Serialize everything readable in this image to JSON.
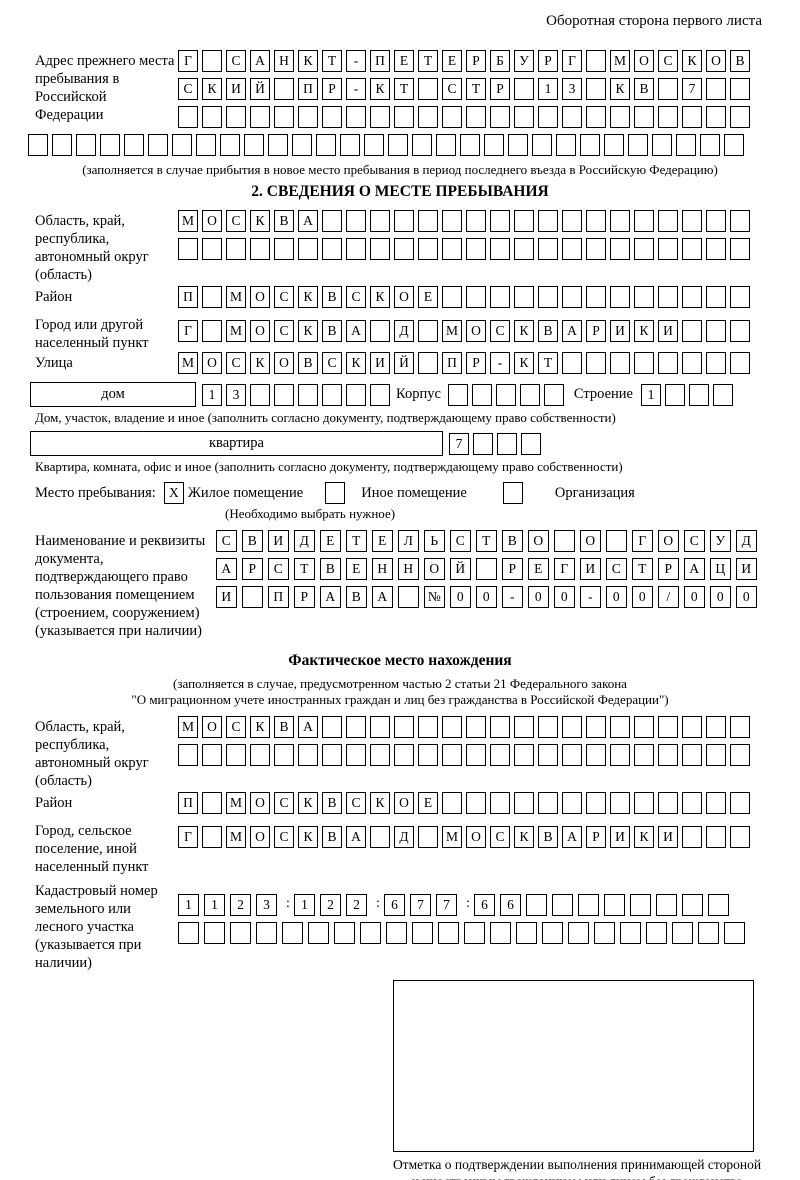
{
  "corner_note": "Оборотная сторона первого листа",
  "prev_address": {
    "label": "Адрес прежнего места пребывания в Российской Федерации",
    "row1": {
      "text": "Г САНКТ-ПЕТЕРБУРГ МОСКОВ",
      "len": 24
    },
    "row2": {
      "text": "СКИЙ ПР-КТ СТР 13 КВ 7",
      "len": 24
    },
    "row3": {
      "text": "",
      "len": 24
    },
    "row4": {
      "text": "",
      "len": 30
    },
    "note": "(заполняется в случае прибытия в новое место пребывания в период последнего въезда в Российскую Федерацию)"
  },
  "section2": {
    "title": "2. СВЕДЕНИЯ О МЕСТЕ ПРЕБЫВАНИЯ",
    "region": {
      "label": "Область, край, республика, автономный округ (область)",
      "row1": {
        "text": "МОСКВА",
        "len": 24
      },
      "row2": {
        "text": "",
        "len": 24
      }
    },
    "district": {
      "label": "Район",
      "row": {
        "text": "П МОСКВСКОЕ",
        "len": 24
      }
    },
    "city": {
      "label": "Город или другой населенный пункт",
      "row": {
        "text": "Г МОСКВА Д МОСКВАРИКИ",
        "len": 24
      }
    },
    "street": {
      "label": "Улица",
      "row": {
        "text": "МОСКОВСКИЙ ПР-КТ",
        "len": 24
      }
    },
    "house": {
      "field_label": "дом",
      "num": {
        "text": "13",
        "len": 8
      },
      "korpus_label": "Корпус",
      "korpus": {
        "text": "",
        "len": 5
      },
      "stroenie_label": "Строение",
      "stroenie": {
        "text": "1",
        "len": 4
      },
      "note": "Дом, участок, владение и иное (заполнить согласно документу, подтверждающему право собственности)"
    },
    "apartment": {
      "field_label": "квартира",
      "num": {
        "text": "7",
        "len": 4
      },
      "note": "Квартира, комната, офис и иное (заполнить согласно документу, подтверждающему право собственности)"
    },
    "stay_type": {
      "label": "Место пребывания:",
      "checkbox1": {
        "text": "X",
        "len": 1
      },
      "option1": "Жилое помещение",
      "checkbox2": {
        "text": "",
        "len": 1
      },
      "option2": "Иное помещение",
      "checkbox3": {
        "text": "",
        "len": 1
      },
      "option3": "Организация",
      "note": "(Необходимо выбрать нужное)"
    },
    "document": {
      "label": "Наименование и реквизиты документа, подтверждающего право пользования помещением (строением, сооружением) (указывается при наличии)",
      "row1": {
        "text": "СВИДЕТЕЛЬСТВО О ГОСУД",
        "len": 21
      },
      "row2": {
        "text": "АРСТВЕННОЙ РЕГИСТРАЦИ",
        "len": 21
      },
      "row3": {
        "text": "И ПРАВА №00-00-00/000",
        "len": 21
      }
    }
  },
  "actual_location": {
    "title": "Фактическое место нахождения",
    "note1": "(заполняется в случае, предусмотренном частью 2 статьи 21 Федерального закона",
    "note2": "\"О миграционном учете иностранных граждан и лиц без гражданства в Российской Федерации\")",
    "region": {
      "label": "Область, край, республика, автономный округ (область)",
      "row1": {
        "text": "МОСКВА",
        "len": 24
      },
      "row2": {
        "text": "",
        "len": 24
      }
    },
    "district": {
      "label": "Район",
      "row": {
        "text": "П МОСКВСКОЕ",
        "len": 24
      }
    },
    "city": {
      "label": "Город, сельское поселение, иной населенный пункт",
      "row": {
        "text": "Г МОСКВА Д МОСКВАРИКИ",
        "len": 24
      }
    },
    "cadastral": {
      "label": "Кадастровый номер земельного или лесного участка (указывается при наличии)",
      "row1": {
        "text": "1123:122:677:66",
        "len": 20
      },
      "row2": {
        "text": "",
        "len": 22
      }
    },
    "stamp_note": "Отметка о подтверждении выполнения принимающей стороной и иностранным гражданином или лицом без гражданства действий, необходимых для его постановки на учет по месту пребывания"
  }
}
